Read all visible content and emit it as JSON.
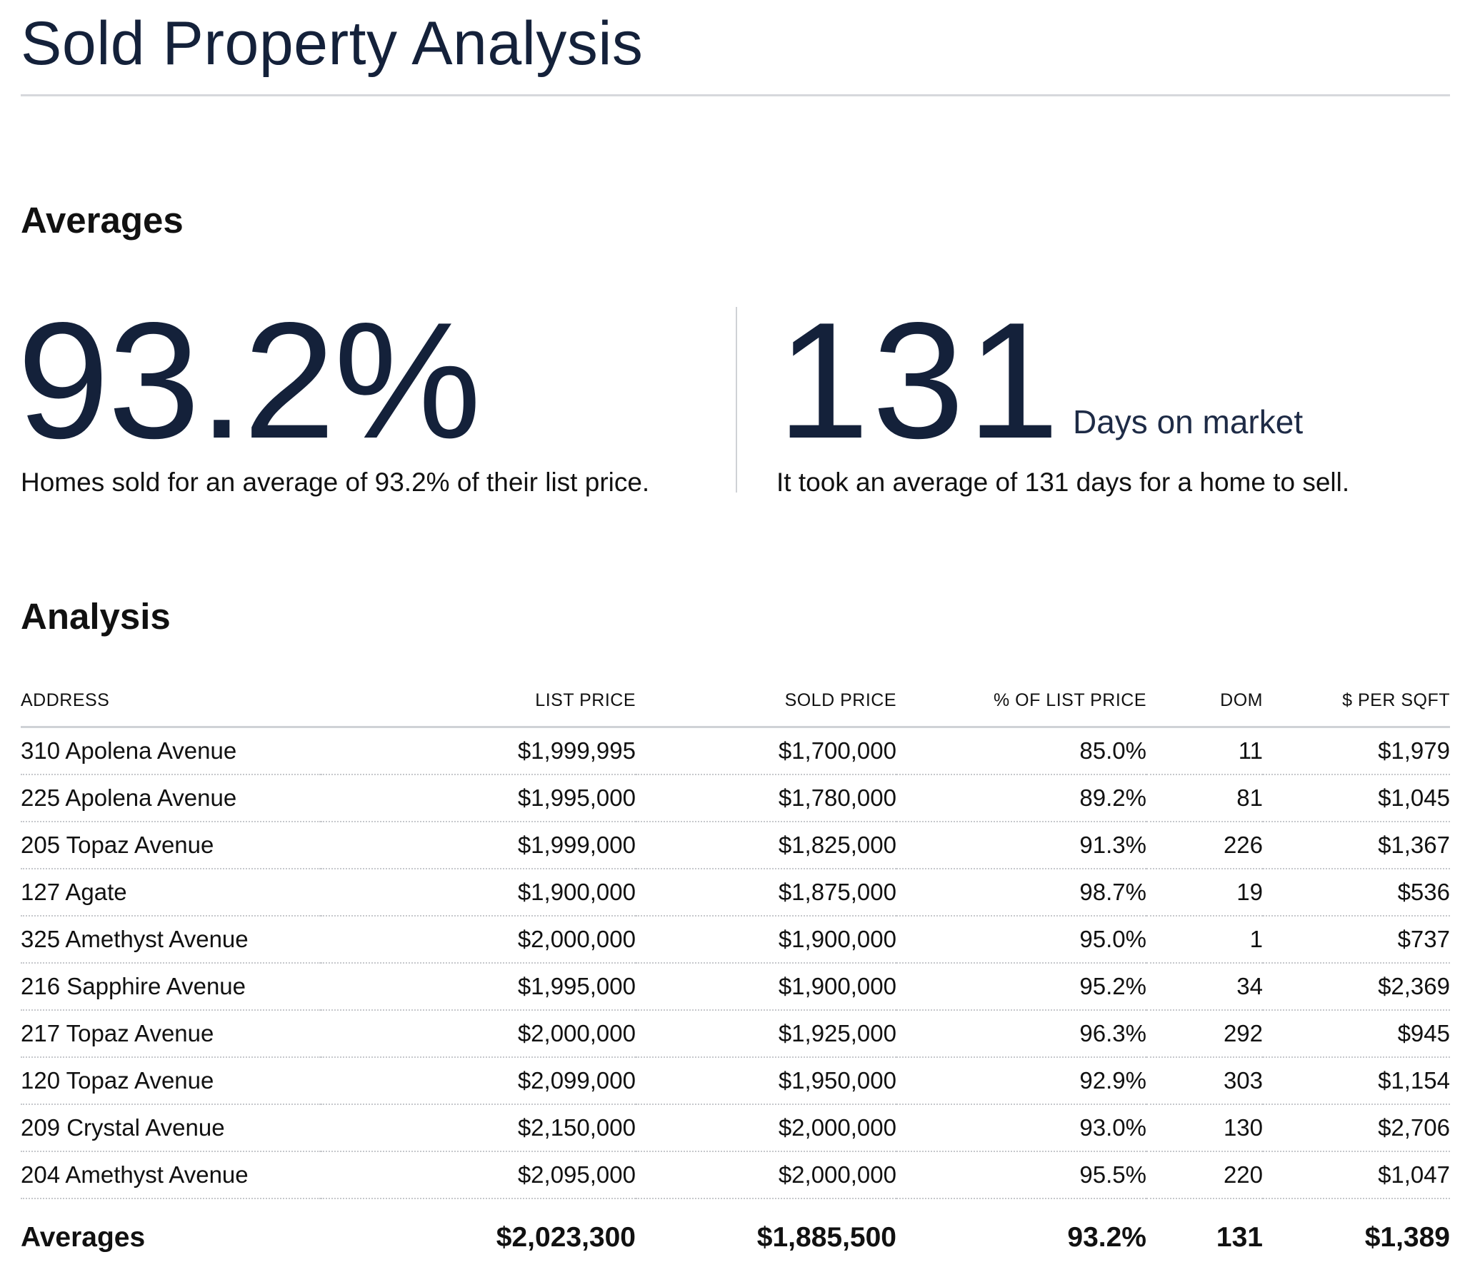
{
  "page": {
    "title": "Sold Property Analysis"
  },
  "averages": {
    "heading": "Averages",
    "percent_of_list": {
      "value": "93.2%",
      "caption": "Homes sold for an average of 93.2% of their list price."
    },
    "days_on_market": {
      "value": "131",
      "unit": "Days on market",
      "caption": "It took an average of 131 days for a home to sell."
    }
  },
  "analysis": {
    "heading": "Analysis",
    "columns": [
      "ADDRESS",
      "LIST PRICE",
      "SOLD PRICE",
      "% OF LIST PRICE",
      "DOM",
      "$ PER SQFT"
    ],
    "rows": [
      [
        "310 Apolena Avenue",
        "$1,999,995",
        "$1,700,000",
        "85.0%",
        "11",
        "$1,979"
      ],
      [
        "225 Apolena Avenue",
        "$1,995,000",
        "$1,780,000",
        "89.2%",
        "81",
        "$1,045"
      ],
      [
        "205 Topaz Avenue",
        "$1,999,000",
        "$1,825,000",
        "91.3%",
        "226",
        "$1,367"
      ],
      [
        "127 Agate",
        "$1,900,000",
        "$1,875,000",
        "98.7%",
        "19",
        "$536"
      ],
      [
        "325 Amethyst Avenue",
        "$2,000,000",
        "$1,900,000",
        "95.0%",
        "1",
        "$737"
      ],
      [
        "216 Sapphire Avenue",
        "$1,995,000",
        "$1,900,000",
        "95.2%",
        "34",
        "$2,369"
      ],
      [
        "217 Topaz Avenue",
        "$2,000,000",
        "$1,925,000",
        "96.3%",
        "292",
        "$945"
      ],
      [
        "120 Topaz Avenue",
        "$2,099,000",
        "$1,950,000",
        "92.9%",
        "303",
        "$1,154"
      ],
      [
        "209 Crystal Avenue",
        "$2,150,000",
        "$2,000,000",
        "93.0%",
        "130",
        "$2,706"
      ],
      [
        "204 Amethyst Avenue",
        "$2,095,000",
        "$2,000,000",
        "95.5%",
        "220",
        "$1,047"
      ]
    ],
    "averages_row": [
      "Averages",
      "$2,023,300",
      "$1,885,500",
      "93.2%",
      "131",
      "$1,389"
    ]
  },
  "colors": {
    "title_navy": "#14213a",
    "text": "#111111",
    "rule_gray": "#d6d8dc",
    "divider_gray": "#cfd2d6"
  }
}
